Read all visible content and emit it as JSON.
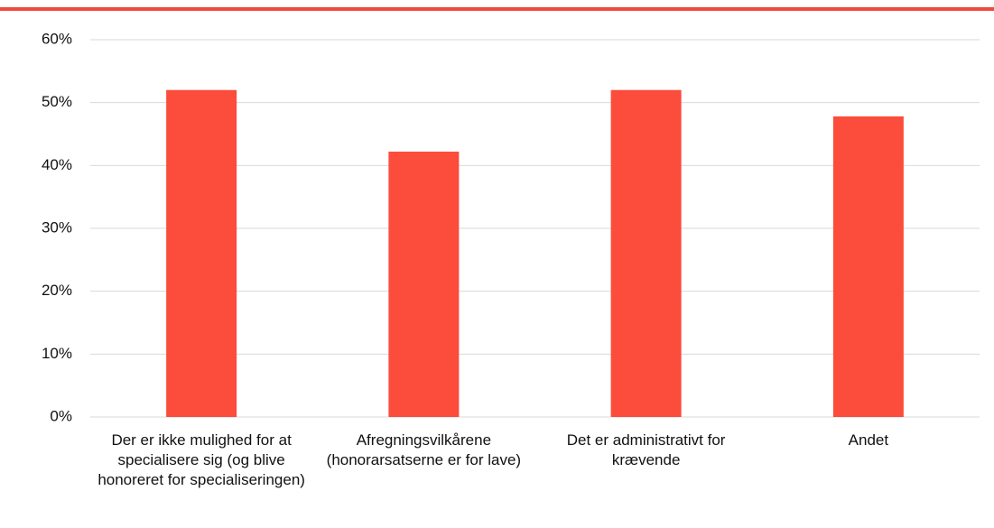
{
  "chart_data": {
    "type": "bar",
    "categories": [
      "Der er ikke mulighed for at specialisere sig (og blive honoreret for specialiseringen)",
      "Afregningsvilkårene (honorarsatserne er for lave)",
      "Det er administrativt for krævende",
      "Andet"
    ],
    "values": [
      52,
      42.2,
      52,
      47.8
    ],
    "color": "#fb4c3c",
    "ylim": [
      0,
      60
    ],
    "yticks": [
      {
        "value": 0,
        "label": "0%"
      },
      {
        "value": 10,
        "label": "10%"
      },
      {
        "value": 20,
        "label": "20%"
      },
      {
        "value": 30,
        "label": "30%"
      },
      {
        "value": 40,
        "label": "40%"
      },
      {
        "value": 50,
        "label": "50%"
      },
      {
        "value": 60,
        "label": "60%"
      }
    ],
    "grid": true
  }
}
